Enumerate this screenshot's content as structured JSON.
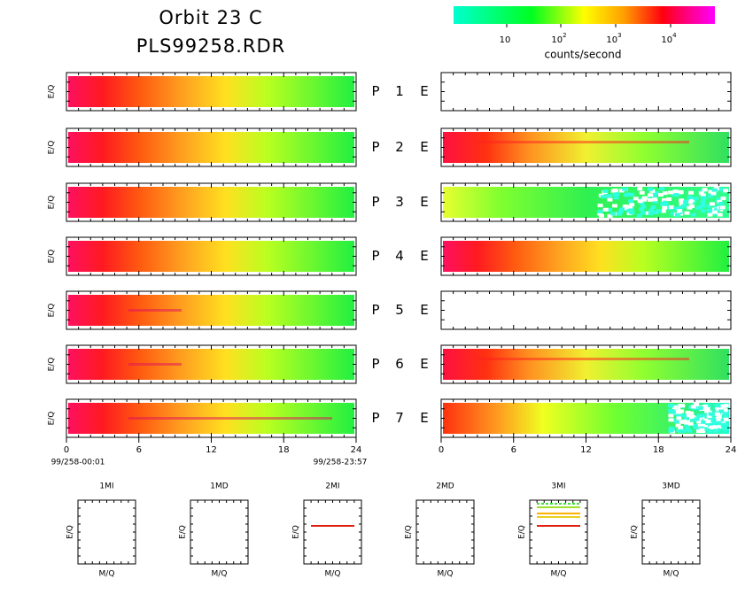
{
  "title": [
    "Orbit 23 C",
    "PLS99258.RDR"
  ],
  "colorbar": {
    "ticks": [
      {
        "base": "10",
        "exponent": ""
      },
      {
        "base": "10",
        "exponent": "2"
      },
      {
        "base": "10",
        "exponent": "3"
      },
      {
        "base": "10",
        "exponent": "4"
      }
    ],
    "label": "counts/second"
  },
  "panel_axis_label": "E/Q",
  "panels": [
    {
      "left": "P",
      "number": "1",
      "right": "E"
    },
    {
      "left": "P",
      "number": "2",
      "right": "E"
    },
    {
      "left": "P",
      "number": "3",
      "right": "E"
    },
    {
      "left": "P",
      "number": "4",
      "right": "E"
    },
    {
      "left": "P",
      "number": "5",
      "right": "E"
    },
    {
      "left": "P",
      "number": "6",
      "right": "E"
    },
    {
      "left": "P",
      "number": "7",
      "right": "E"
    }
  ],
  "time_axis": {
    "ticks": [
      0,
      6,
      12,
      18,
      24
    ],
    "start": "99/258-00:01",
    "end": "99/258-23:57"
  },
  "mass_panels": [
    {
      "title": "1MI"
    },
    {
      "title": "1MD"
    },
    {
      "title": "2MI"
    },
    {
      "title": "2MD"
    },
    {
      "title": "3MI"
    },
    {
      "title": "3MD"
    }
  ],
  "mass_axis": {
    "x_label": "M/Q",
    "y_label": "E/Q"
  }
}
